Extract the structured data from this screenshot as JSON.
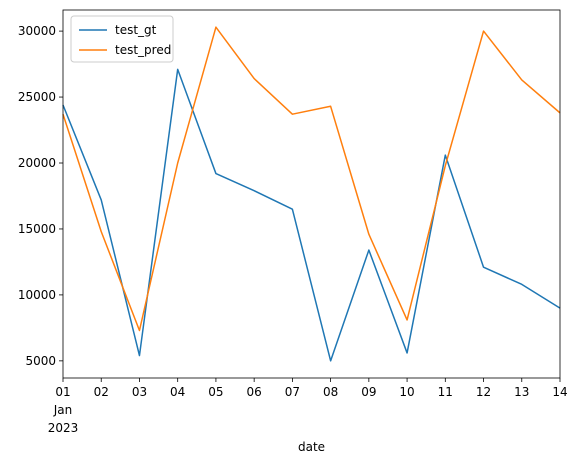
{
  "chart_data": {
    "type": "line",
    "x": [
      "2023-01-01",
      "2023-01-02",
      "2023-01-03",
      "2023-01-04",
      "2023-01-05",
      "2023-01-06",
      "2023-01-07",
      "2023-01-08",
      "2023-01-09",
      "2023-01-10",
      "2023-01-11",
      "2023-01-12",
      "2023-01-13",
      "2023-01-14"
    ],
    "x_tick_labels": [
      "01",
      "02",
      "03",
      "04",
      "05",
      "06",
      "07",
      "08",
      "09",
      "10",
      "11",
      "12",
      "13",
      "14"
    ],
    "x_tick_sublabel_month": "Jan",
    "x_tick_sublabel_year": "2023",
    "xlabel": "date",
    "ylabel": "",
    "title": "",
    "ylim": [
      3700,
      31600
    ],
    "y_ticks": [
      5000,
      10000,
      15000,
      20000,
      25000,
      30000
    ],
    "y_tick_labels": [
      "5000",
      "10000",
      "15000",
      "20000",
      "25000",
      "30000"
    ],
    "grid": false,
    "legend_position": "top-left",
    "series": [
      {
        "name": "test_gt",
        "color": "#1f77b4",
        "values": [
          24400,
          17200,
          5400,
          27100,
          19200,
          17900,
          16500,
          5000,
          13400,
          5600,
          20600,
          12100,
          10800,
          9000
        ]
      },
      {
        "name": "test_pred",
        "color": "#ff7f0e",
        "values": [
          23700,
          14800,
          7300,
          20000,
          30300,
          26400,
          23700,
          24300,
          14600,
          8100,
          19800,
          30000,
          26300,
          23800
        ]
      }
    ]
  }
}
